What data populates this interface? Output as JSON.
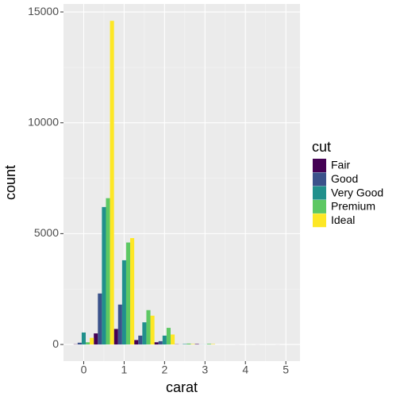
{
  "chart_data": {
    "type": "histogram",
    "x_label": "carat",
    "y_label": "count",
    "legend_title": "cut",
    "bins": [
      -0.25,
      0.25,
      0.75,
      1.25,
      1.75,
      2.25,
      2.75,
      3.25,
      3.75,
      4.25,
      4.75,
      5.25
    ],
    "series": [
      {
        "name": "Fair",
        "color": "#440154",
        "values": [
          10,
          500,
          700,
          200,
          100,
          10,
          20,
          0,
          1,
          1,
          1
        ]
      },
      {
        "name": "Good",
        "color": "#3B528B",
        "values": [
          80,
          2300,
          1800,
          400,
          150,
          5,
          5,
          0,
          0,
          0,
          0
        ]
      },
      {
        "name": "Very Good",
        "color": "#21908C",
        "values": [
          540,
          6200,
          3800,
          1000,
          400,
          20,
          5,
          0,
          0,
          0,
          0
        ]
      },
      {
        "name": "Premium",
        "color": "#5DC863",
        "values": [
          100,
          6600,
          4600,
          1550,
          750,
          40,
          30,
          0,
          1,
          0,
          0
        ]
      },
      {
        "name": "Ideal",
        "color": "#FDE725",
        "values": [
          300,
          14600,
          4800,
          1300,
          450,
          20,
          20,
          0,
          0,
          0,
          0
        ]
      }
    ],
    "xlim": [
      -0.5,
      5.35
    ],
    "ylim": [
      -750,
      15360
    ],
    "xticks": [
      0,
      1,
      2,
      3,
      4,
      5
    ],
    "yticks": [
      0,
      5000,
      10000,
      15000
    ],
    "grid": true
  }
}
